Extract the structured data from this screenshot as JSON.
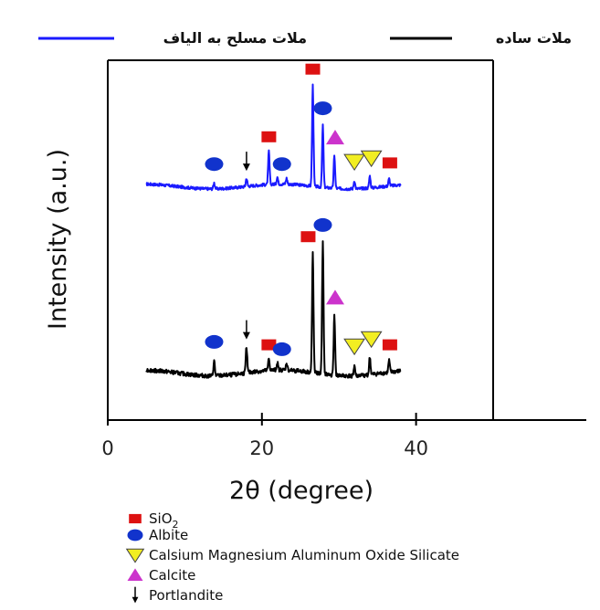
{
  "chart_data": {
    "type": "line",
    "title": "",
    "xlabel": "2θ (degree)",
    "ylabel": "Intensity (a.u.)",
    "xlim": [
      0,
      50
    ],
    "x_ticks": [
      0,
      20,
      40
    ],
    "series_legend": [
      {
        "name": "ملات مسلح به الیاف",
        "color": "#1a1aff"
      },
      {
        "name": "ملات ساده",
        "color": "#000000"
      }
    ],
    "series": [
      {
        "name": "ملات مسلح به الیاف",
        "color": "#1a1aff",
        "baseline": 0.06,
        "noise": 0.012,
        "peaks": [
          {
            "x": 13.8,
            "h": 0.05
          },
          {
            "x": 18.0,
            "h": 0.07
          },
          {
            "x": 20.9,
            "h": 0.28
          },
          {
            "x": 22.0,
            "h": 0.06
          },
          {
            "x": 23.2,
            "h": 0.05
          },
          {
            "x": 26.6,
            "h": 0.85
          },
          {
            "x": 27.9,
            "h": 0.52
          },
          {
            "x": 29.4,
            "h": 0.27
          },
          {
            "x": 32.0,
            "h": 0.07
          },
          {
            "x": 34.0,
            "h": 0.1
          },
          {
            "x": 36.5,
            "h": 0.06
          }
        ],
        "markers": [
          {
            "type": "sio2",
            "x": 26.6
          },
          {
            "type": "albite",
            "x": 27.9
          },
          {
            "type": "sio2",
            "x": 20.9
          },
          {
            "type": "albite",
            "x": 13.8
          },
          {
            "type": "albite",
            "x": 22.6
          },
          {
            "type": "portlandite",
            "x": 18.0
          },
          {
            "type": "calcite",
            "x": 29.5
          },
          {
            "type": "cmaos",
            "x": 32.0
          },
          {
            "type": "cmaos",
            "x": 34.2
          },
          {
            "type": "sio2",
            "x": 36.6
          }
        ]
      },
      {
        "name": "ملات ساده",
        "color": "#000000",
        "baseline": 0.06,
        "noise": 0.014,
        "peaks": [
          {
            "x": 13.8,
            "h": 0.1
          },
          {
            "x": 18.0,
            "h": 0.18
          },
          {
            "x": 20.9,
            "h": 0.08
          },
          {
            "x": 22.0,
            "h": 0.05
          },
          {
            "x": 23.2,
            "h": 0.05
          },
          {
            "x": 26.6,
            "h": 0.82
          },
          {
            "x": 27.9,
            "h": 0.9
          },
          {
            "x": 29.4,
            "h": 0.4
          },
          {
            "x": 32.0,
            "h": 0.07
          },
          {
            "x": 34.0,
            "h": 0.12
          },
          {
            "x": 36.5,
            "h": 0.08
          }
        ],
        "markers": [
          {
            "type": "sio2",
            "x": 26.0
          },
          {
            "type": "albite",
            "x": 27.9
          },
          {
            "type": "albite",
            "x": 13.8
          },
          {
            "type": "portlandite",
            "x": 18.0
          },
          {
            "type": "sio2",
            "x": 20.9
          },
          {
            "type": "albite",
            "x": 22.6
          },
          {
            "type": "calcite",
            "x": 29.5
          },
          {
            "type": "cmaos",
            "x": 32.0
          },
          {
            "type": "cmaos",
            "x": 34.2
          },
          {
            "type": "sio2",
            "x": 36.6
          }
        ]
      }
    ],
    "phase_legend": [
      {
        "type": "sio2",
        "label": "SiO",
        "sub": "2"
      },
      {
        "type": "albite",
        "label": "Albite",
        "sub": ""
      },
      {
        "type": "cmaos",
        "label": "Calsium Magnesium Aluminum Oxide Silicate",
        "sub": ""
      },
      {
        "type": "calcite",
        "label": "Calcite",
        "sub": ""
      },
      {
        "type": "portlandite",
        "label": "Portlandite",
        "sub": ""
      }
    ],
    "phase_colors": {
      "sio2": "#dd1111",
      "albite": "#1133cc",
      "cmaos": "#f2ee22",
      "calcite": "#cc33cc",
      "portlandite": "#000000"
    }
  }
}
